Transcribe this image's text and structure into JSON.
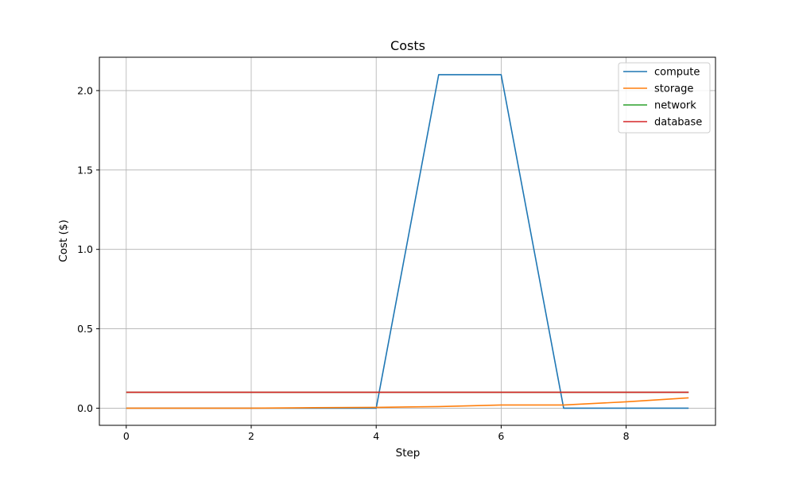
{
  "chart_data": {
    "type": "line",
    "title": "Costs",
    "xlabel": "Step",
    "ylabel": "Cost ($)",
    "xlim": [
      -0.43,
      9.43
    ],
    "ylim": [
      -0.108,
      2.21
    ],
    "xticks": [
      0,
      2,
      4,
      6,
      8
    ],
    "xtick_labels": [
      "0",
      "2",
      "4",
      "6",
      "8"
    ],
    "yticks": [
      0.0,
      0.5,
      1.0,
      1.5,
      2.0
    ],
    "ytick_labels": [
      "0.0",
      "0.5",
      "1.0",
      "1.5",
      "2.0"
    ],
    "grid": true,
    "legend_position": "upper right",
    "x": [
      0,
      1,
      2,
      3,
      4,
      5,
      6,
      7,
      8,
      9
    ],
    "series": [
      {
        "name": "compute",
        "color": "#1f77b4",
        "values": [
          0,
          0,
          0,
          0,
          0,
          2.1,
          2.1,
          0,
          0,
          0
        ]
      },
      {
        "name": "storage",
        "color": "#ff7f0e",
        "values": [
          0,
          0,
          0,
          0.003,
          0.005,
          0.01,
          0.02,
          0.02,
          0.04,
          0.065
        ]
      },
      {
        "name": "network",
        "color": "#2ca02c",
        "values": [
          0.1,
          0.1,
          0.1,
          0.1,
          0.1,
          0.1,
          0.1,
          0.1,
          0.1,
          0.1
        ]
      },
      {
        "name": "database",
        "color": "#d62728",
        "values": [
          0.1,
          0.1,
          0.1,
          0.1,
          0.1,
          0.1,
          0.1,
          0.1,
          0.1,
          0.1
        ]
      }
    ]
  }
}
